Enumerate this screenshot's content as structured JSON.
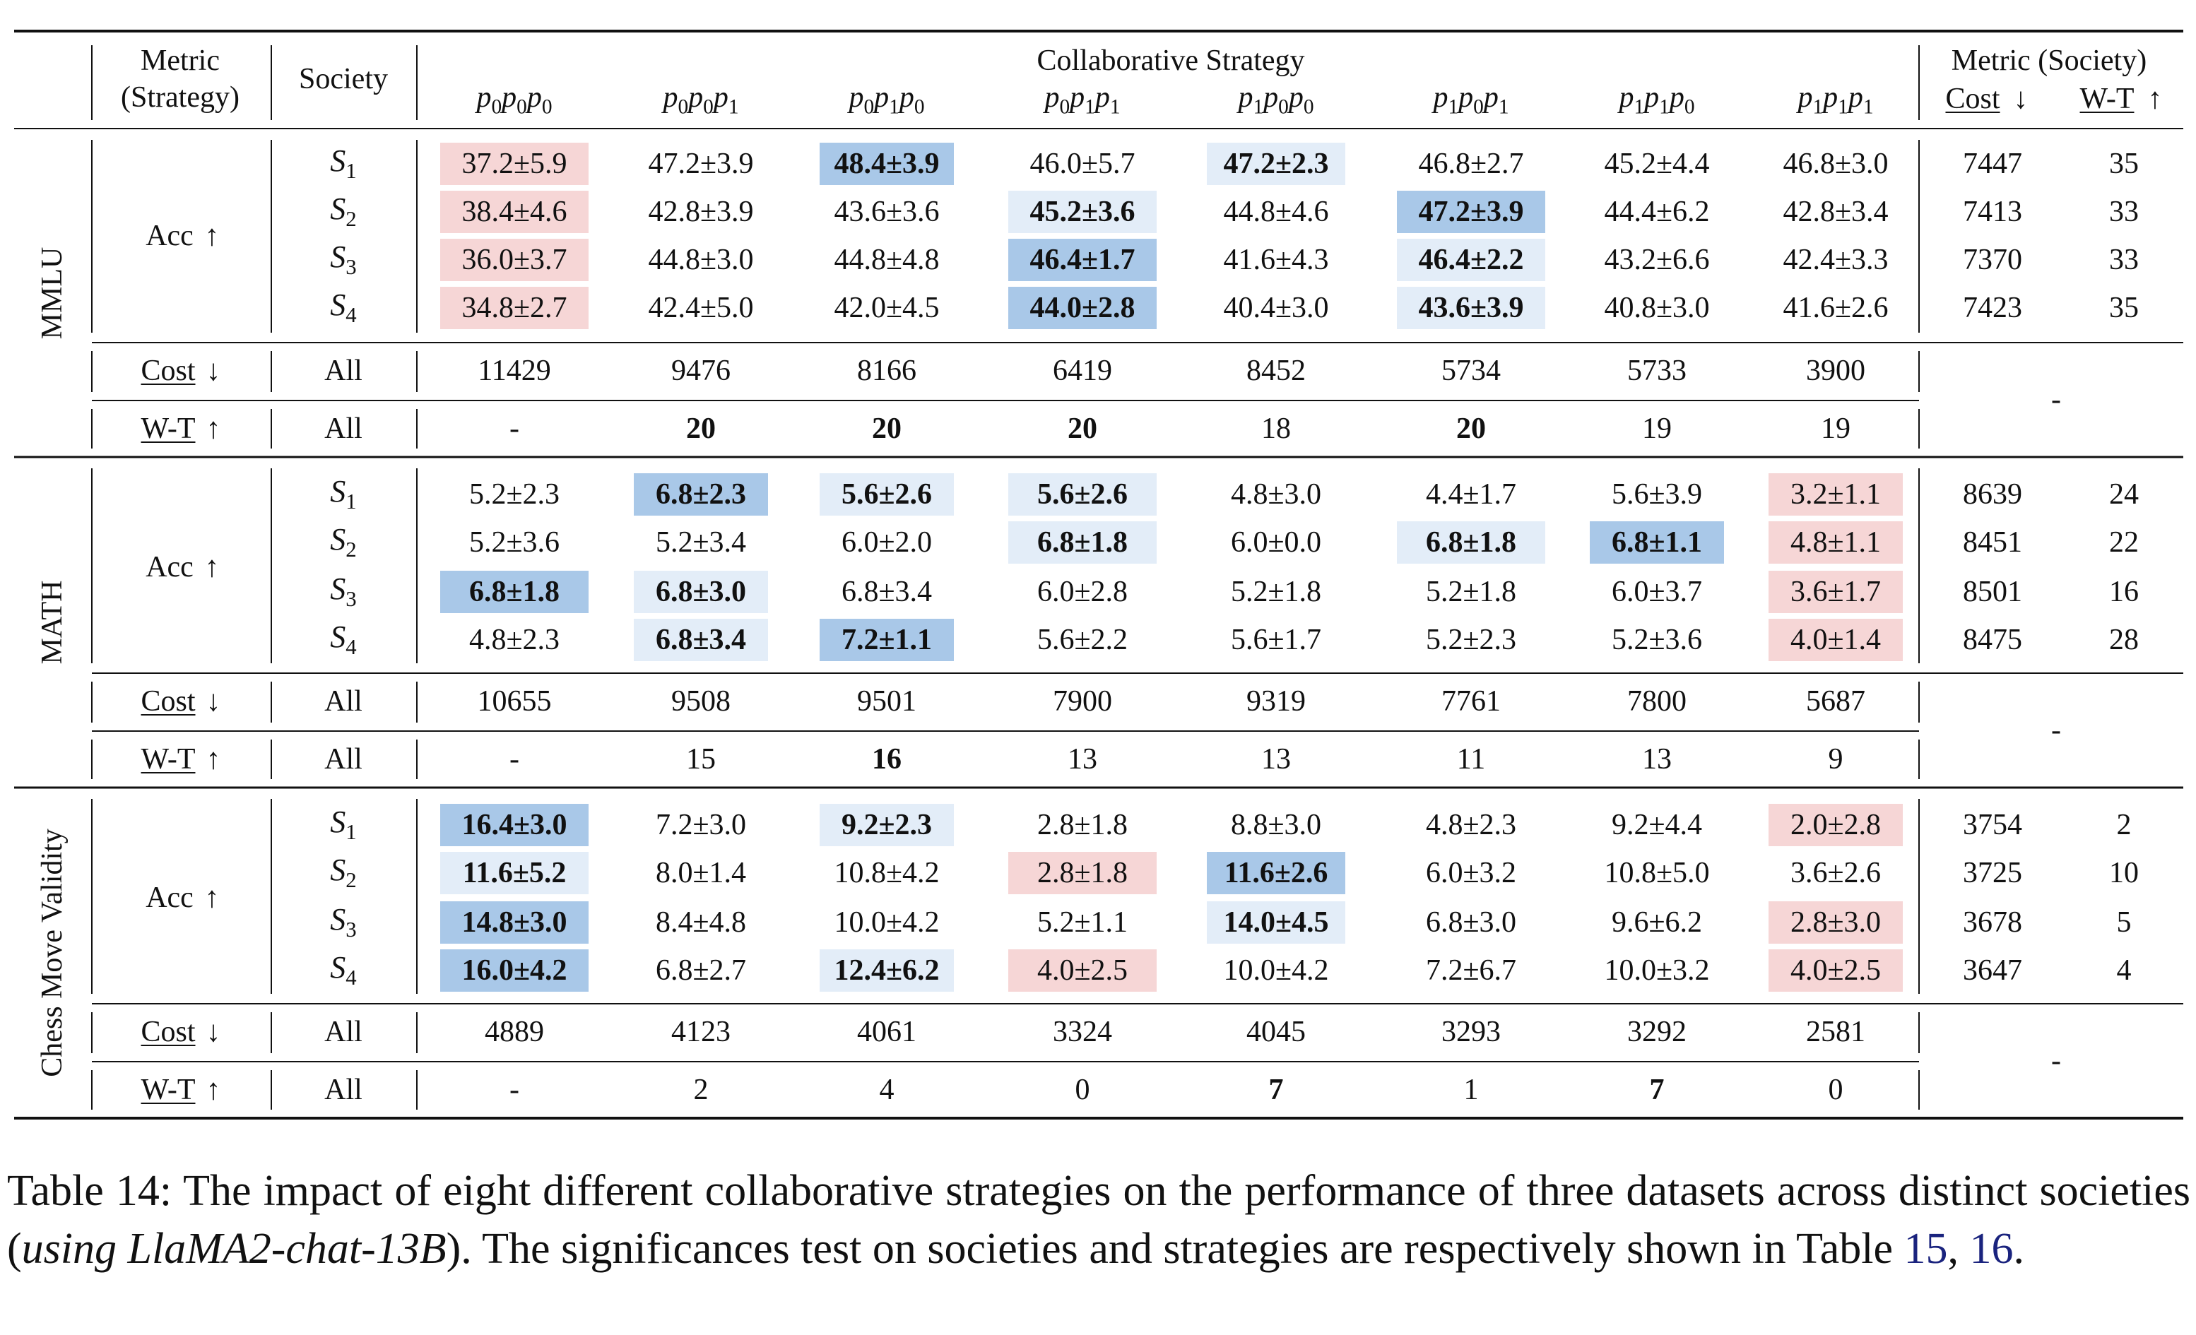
{
  "colors": {
    "blue_strong": "#a9c8e8",
    "blue_light": "#e3edf8",
    "red_light": "#f6d6d6",
    "ref": "#1a237e"
  },
  "header": {
    "metric_strategy": [
      "Metric",
      "(Strategy)"
    ],
    "society": "Society",
    "collab": "Collaborative Strategy",
    "metric_society": "Metric (Society)",
    "cost": "Cost",
    "wt": "W-T",
    "down_arrow": "↓",
    "up_arrow": "↑"
  },
  "strategies": [
    {
      "parts": [
        "p",
        "0",
        "p",
        "0",
        "p",
        "0"
      ]
    },
    {
      "parts": [
        "p",
        "0",
        "p",
        "0",
        "p",
        "1"
      ]
    },
    {
      "parts": [
        "p",
        "0",
        "p",
        "1",
        "p",
        "0"
      ]
    },
    {
      "parts": [
        "p",
        "0",
        "p",
        "1",
        "p",
        "1"
      ]
    },
    {
      "parts": [
        "p",
        "1",
        "p",
        "0",
        "p",
        "0"
      ]
    },
    {
      "parts": [
        "p",
        "1",
        "p",
        "0",
        "p",
        "1"
      ]
    },
    {
      "parts": [
        "p",
        "1",
        "p",
        "1",
        "p",
        "0"
      ]
    },
    {
      "parts": [
        "p",
        "1",
        "p",
        "1",
        "p",
        "1"
      ]
    }
  ],
  "labels": {
    "acc": "Acc",
    "cost": "Cost",
    "wt": "W-T",
    "all": "All",
    "dash": "-"
  },
  "datasets": [
    {
      "name": "MMLU",
      "rows": [
        {
          "society": "S",
          "sub": "1",
          "cells": [
            [
              "37.2±5.9",
              0,
              "r"
            ],
            [
              "47.2±3.9",
              0,
              ""
            ],
            [
              "48.4±3.9",
              1,
              "b"
            ],
            [
              "46.0±5.7",
              0,
              ""
            ],
            [
              "47.2±2.3",
              1,
              "l"
            ],
            [
              "46.8±2.7",
              0,
              ""
            ],
            [
              "45.2±4.4",
              0,
              ""
            ],
            [
              "46.8±3.0",
              0,
              ""
            ]
          ],
          "cost": "7447",
          "wt": "35"
        },
        {
          "society": "S",
          "sub": "2",
          "cells": [
            [
              "38.4±4.6",
              0,
              "r"
            ],
            [
              "42.8±3.9",
              0,
              ""
            ],
            [
              "43.6±3.6",
              0,
              ""
            ],
            [
              "45.2±3.6",
              1,
              "l"
            ],
            [
              "44.8±4.6",
              0,
              ""
            ],
            [
              "47.2±3.9",
              1,
              "b"
            ],
            [
              "44.4±6.2",
              0,
              ""
            ],
            [
              "42.8±3.4",
              0,
              ""
            ]
          ],
          "cost": "7413",
          "wt": "33"
        },
        {
          "society": "S",
          "sub": "3",
          "cells": [
            [
              "36.0±3.7",
              0,
              "r"
            ],
            [
              "44.8±3.0",
              0,
              ""
            ],
            [
              "44.8±4.8",
              0,
              ""
            ],
            [
              "46.4±1.7",
              1,
              "b"
            ],
            [
              "41.6±4.3",
              0,
              ""
            ],
            [
              "46.4±2.2",
              1,
              "l"
            ],
            [
              "43.2±6.6",
              0,
              ""
            ],
            [
              "42.4±3.3",
              0,
              ""
            ]
          ],
          "cost": "7370",
          "wt": "33"
        },
        {
          "society": "S",
          "sub": "4",
          "cells": [
            [
              "34.8±2.7",
              0,
              "r"
            ],
            [
              "42.4±5.0",
              0,
              ""
            ],
            [
              "42.0±4.5",
              0,
              ""
            ],
            [
              "44.0±2.8",
              1,
              "b"
            ],
            [
              "40.4±3.0",
              0,
              ""
            ],
            [
              "43.6±3.9",
              1,
              "l"
            ],
            [
              "40.8±3.0",
              0,
              ""
            ],
            [
              "41.6±2.6",
              0,
              ""
            ]
          ],
          "cost": "7423",
          "wt": "35"
        }
      ],
      "cost_all": [
        "11429",
        "9476",
        "8166",
        "6419",
        "8452",
        "5734",
        "5733",
        "3900"
      ],
      "wt_all": [
        [
          "-",
          0
        ],
        [
          "20",
          1
        ],
        [
          "20",
          1
        ],
        [
          "20",
          1
        ],
        [
          "18",
          0
        ],
        [
          "20",
          1
        ],
        [
          "19",
          0
        ],
        [
          "19",
          0
        ]
      ]
    },
    {
      "name": "MATH",
      "rows": [
        {
          "society": "S",
          "sub": "1",
          "cells": [
            [
              "5.2±2.3",
              0,
              ""
            ],
            [
              "6.8±2.3",
              1,
              "b"
            ],
            [
              "5.6±2.6",
              1,
              "l"
            ],
            [
              "5.6±2.6",
              1,
              "l"
            ],
            [
              "4.8±3.0",
              0,
              ""
            ],
            [
              "4.4±1.7",
              0,
              ""
            ],
            [
              "5.6±3.9",
              0,
              ""
            ],
            [
              "3.2±1.1",
              0,
              "r"
            ]
          ],
          "cost": "8639",
          "wt": "24"
        },
        {
          "society": "S",
          "sub": "2",
          "cells": [
            [
              "5.2±3.6",
              0,
              ""
            ],
            [
              "5.2±3.4",
              0,
              ""
            ],
            [
              "6.0±2.0",
              0,
              ""
            ],
            [
              "6.8±1.8",
              1,
              "l"
            ],
            [
              "6.0±0.0",
              0,
              ""
            ],
            [
              "6.8±1.8",
              1,
              "l"
            ],
            [
              "6.8±1.1",
              1,
              "b"
            ],
            [
              "4.8±1.1",
              0,
              "r"
            ]
          ],
          "cost": "8451",
          "wt": "22"
        },
        {
          "society": "S",
          "sub": "3",
          "cells": [
            [
              "6.8±1.8",
              1,
              "b"
            ],
            [
              "6.8±3.0",
              1,
              "l"
            ],
            [
              "6.8±3.4",
              0,
              ""
            ],
            [
              "6.0±2.8",
              0,
              ""
            ],
            [
              "5.2±1.8",
              0,
              ""
            ],
            [
              "5.2±1.8",
              0,
              ""
            ],
            [
              "6.0±3.7",
              0,
              ""
            ],
            [
              "3.6±1.7",
              0,
              "r"
            ]
          ],
          "cost": "8501",
          "wt": "16"
        },
        {
          "society": "S",
          "sub": "4",
          "cells": [
            [
              "4.8±2.3",
              0,
              ""
            ],
            [
              "6.8±3.4",
              1,
              "l"
            ],
            [
              "7.2±1.1",
              1,
              "b"
            ],
            [
              "5.6±2.2",
              0,
              ""
            ],
            [
              "5.6±1.7",
              0,
              ""
            ],
            [
              "5.2±2.3",
              0,
              ""
            ],
            [
              "5.2±3.6",
              0,
              ""
            ],
            [
              "4.0±1.4",
              0,
              "r"
            ]
          ],
          "cost": "8475",
          "wt": "28"
        }
      ],
      "cost_all": [
        "10655",
        "9508",
        "9501",
        "7900",
        "9319",
        "7761",
        "7800",
        "5687"
      ],
      "wt_all": [
        [
          "-",
          0
        ],
        [
          "15",
          0
        ],
        [
          "16",
          1
        ],
        [
          "13",
          0
        ],
        [
          "13",
          0
        ],
        [
          "11",
          0
        ],
        [
          "13",
          0
        ],
        [
          "9",
          0
        ]
      ]
    },
    {
      "name": "Chess Move Validity",
      "rows": [
        {
          "society": "S",
          "sub": "1",
          "cells": [
            [
              "16.4±3.0",
              1,
              "b"
            ],
            [
              "7.2±3.0",
              0,
              ""
            ],
            [
              "9.2±2.3",
              1,
              "l"
            ],
            [
              "2.8±1.8",
              0,
              ""
            ],
            [
              "8.8±3.0",
              0,
              ""
            ],
            [
              "4.8±2.3",
              0,
              ""
            ],
            [
              "9.2±4.4",
              0,
              ""
            ],
            [
              "2.0±2.8",
              0,
              "r"
            ]
          ],
          "cost": "3754",
          "wt": "2"
        },
        {
          "society": "S",
          "sub": "2",
          "cells": [
            [
              "11.6±5.2",
              1,
              "l"
            ],
            [
              "8.0±1.4",
              0,
              ""
            ],
            [
              "10.8±4.2",
              0,
              ""
            ],
            [
              "2.8±1.8",
              0,
              "r"
            ],
            [
              "11.6±2.6",
              1,
              "b"
            ],
            [
              "6.0±3.2",
              0,
              ""
            ],
            [
              "10.8±5.0",
              0,
              ""
            ],
            [
              "3.6±2.6",
              0,
              ""
            ]
          ],
          "cost": "3725",
          "wt": "10"
        },
        {
          "society": "S",
          "sub": "3",
          "cells": [
            [
              "14.8±3.0",
              1,
              "b"
            ],
            [
              "8.4±4.8",
              0,
              ""
            ],
            [
              "10.0±4.2",
              0,
              ""
            ],
            [
              "5.2±1.1",
              0,
              ""
            ],
            [
              "14.0±4.5",
              1,
              "l"
            ],
            [
              "6.8±3.0",
              0,
              ""
            ],
            [
              "9.6±6.2",
              0,
              ""
            ],
            [
              "2.8±3.0",
              0,
              "r"
            ]
          ],
          "cost": "3678",
          "wt": "5"
        },
        {
          "society": "S",
          "sub": "4",
          "cells": [
            [
              "16.0±4.2",
              1,
              "b"
            ],
            [
              "6.8±2.7",
              0,
              ""
            ],
            [
              "12.4±6.2",
              1,
              "l"
            ],
            [
              "4.0±2.5",
              0,
              "r"
            ],
            [
              "10.0±4.2",
              0,
              ""
            ],
            [
              "7.2±6.7",
              0,
              ""
            ],
            [
              "10.0±3.2",
              0,
              ""
            ],
            [
              "4.0±2.5",
              0,
              "r"
            ]
          ],
          "cost": "3647",
          "wt": "4"
        }
      ],
      "cost_all": [
        "4889",
        "4123",
        "4061",
        "3324",
        "4045",
        "3293",
        "3292",
        "2581"
      ],
      "wt_all": [
        [
          "-",
          0
        ],
        [
          "2",
          0
        ],
        [
          "4",
          0
        ],
        [
          "0",
          0
        ],
        [
          "7",
          1
        ],
        [
          "1",
          0
        ],
        [
          "7",
          1
        ],
        [
          "0",
          0
        ]
      ]
    }
  ],
  "caption": {
    "prefix": "Table 14: The impact of eight different collaborative strategies on the performance of three datasets across distinct societies (",
    "model": "using LlaMA2-chat-13B",
    "middle": "). The significances test on societies and strategies are respectively shown in Table ",
    "ref1": "15",
    "sep": ", ",
    "ref2": "16",
    "end": "."
  }
}
